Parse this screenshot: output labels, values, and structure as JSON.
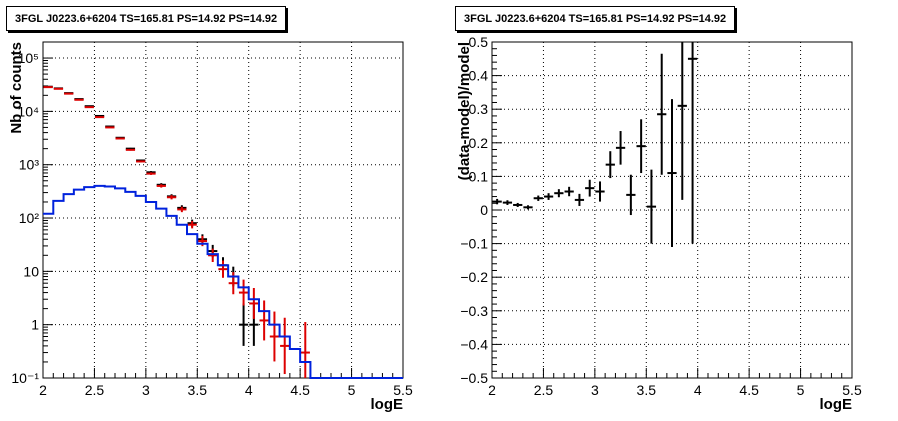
{
  "chart_data": [
    {
      "type": "histogram",
      "title": "3FGL J0223.6+6204 TS=165.81 PS=14.92 PS=14.92",
      "xlabel": "logE",
      "ylabel": "Nb of counts",
      "xlim": [
        2,
        5.5
      ],
      "ylim": [
        0.1,
        200000
      ],
      "yscale": "log",
      "grid": true,
      "xticks": [
        "2",
        "2.5",
        "3",
        "3.5",
        "4",
        "4.5",
        "5",
        "5.5"
      ],
      "yticks": [
        "10⁻¹",
        "1",
        "10",
        "10²",
        "10³",
        "10⁴",
        "10⁵"
      ],
      "series": [
        {
          "color": "#000000",
          "style": "points",
          "x": [
            2.05,
            2.15,
            2.25,
            2.35,
            2.45,
            2.55,
            2.65,
            2.75,
            2.85,
            2.95,
            3.05,
            3.15,
            3.25,
            3.35,
            3.45,
            3.55,
            3.65,
            3.75,
            3.85,
            3.95,
            4.05
          ],
          "y": [
            29000,
            27000,
            22000,
            17000,
            12500,
            8200,
            5200,
            3200,
            2000,
            1200,
            720,
            420,
            255,
            155,
            80,
            40,
            24,
            13,
            8,
            1,
            1
          ]
        },
        {
          "color": "#dd0000",
          "style": "points",
          "x": [
            2.05,
            2.15,
            2.25,
            2.35,
            2.45,
            2.55,
            2.65,
            2.75,
            2.85,
            2.95,
            3.05,
            3.15,
            3.25,
            3.35,
            3.45,
            3.55,
            3.65,
            3.75,
            3.85,
            3.95,
            4.05,
            4.15,
            4.25,
            4.35,
            4.55
          ],
          "y": [
            28500,
            26500,
            21500,
            16500,
            12000,
            7800,
            5000,
            3100,
            1900,
            1150,
            680,
            400,
            245,
            145,
            75,
            37,
            20,
            11,
            6,
            4,
            2.5,
            1.2,
            0.6,
            0.4,
            0.3
          ]
        },
        {
          "color": "#0022dd",
          "style": "step",
          "x": [
            2.05,
            2.15,
            2.25,
            2.35,
            2.45,
            2.55,
            2.65,
            2.75,
            2.85,
            2.95,
            3.05,
            3.15,
            3.25,
            3.35,
            3.45,
            3.55,
            3.65,
            3.75,
            3.85,
            3.95,
            4.05,
            4.15,
            4.25,
            4.35,
            4.45,
            4.55,
            4.65,
            4.75,
            4.85,
            4.95,
            5.05,
            5.15,
            5.25,
            5.35,
            5.45
          ],
          "y": [
            120,
            210,
            280,
            340,
            380,
            400,
            390,
            360,
            310,
            260,
            200,
            150,
            110,
            75,
            50,
            33,
            21,
            13,
            8,
            5,
            3,
            1.8,
            1,
            0.6,
            0.35,
            0.2,
            0.1,
            0.1,
            0.1,
            0.1,
            0.1,
            0.1,
            0.1,
            0.1,
            0.1
          ]
        }
      ]
    },
    {
      "type": "scatter",
      "title": "3FGL J0223.6+6204 TS=165.81 PS=14.92 PS=14.92",
      "xlabel": "logE",
      "ylabel": "(data-model)/model",
      "xlim": [
        2,
        5.5
      ],
      "ylim": [
        -0.5,
        0.5
      ],
      "grid": true,
      "xticks": [
        "2",
        "2.5",
        "3",
        "3.5",
        "4",
        "4.5",
        "5",
        "5.5"
      ],
      "yticks": [
        "−0.5",
        "−0.4",
        "−0.3",
        "−0.2",
        "−0.1",
        "0",
        "0.1",
        "0.2",
        "0.3",
        "0.4",
        "0.5"
      ],
      "series": [
        {
          "color": "#000000",
          "x": [
            2.05,
            2.15,
            2.25,
            2.35,
            2.45,
            2.55,
            2.65,
            2.75,
            2.85,
            2.95,
            3.05,
            3.15,
            3.25,
            3.35,
            3.45,
            3.55,
            3.65,
            3.75,
            3.85,
            3.95
          ],
          "y": [
            0.025,
            0.022,
            0.015,
            0.008,
            0.035,
            0.04,
            0.05,
            0.055,
            0.03,
            0.065,
            0.055,
            0.135,
            0.185,
            0.045,
            0.19,
            0.01,
            0.285,
            0.11,
            0.31,
            0.45
          ],
          "yerr": [
            0.008,
            0.007,
            0.006,
            0.006,
            0.008,
            0.01,
            0.012,
            0.014,
            0.018,
            0.025,
            0.03,
            0.04,
            0.05,
            0.06,
            0.08,
            0.11,
            0.18,
            0.22,
            0.28,
            0.55
          ]
        }
      ]
    }
  ]
}
